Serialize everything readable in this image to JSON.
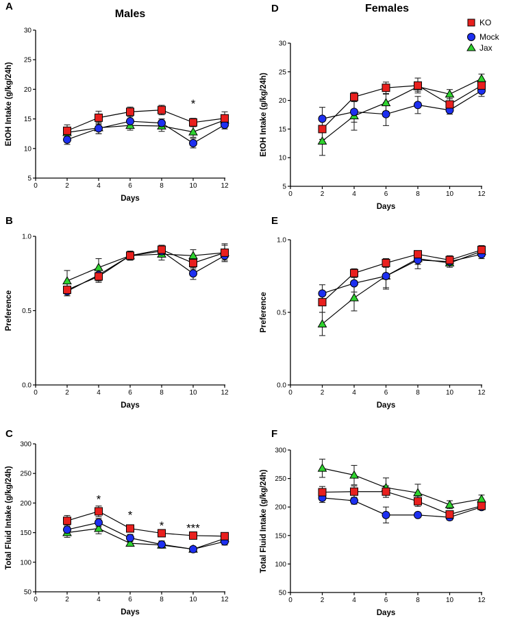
{
  "figure": {
    "column_titles": [
      "Males",
      "Females"
    ]
  },
  "legend": [
    {
      "name": "KO",
      "marker": "square",
      "color": "#e8201e"
    },
    {
      "name": "Mock",
      "marker": "circle",
      "color": "#1d2ff0"
    },
    {
      "name": "Jax",
      "marker": "triangle",
      "color": "#2fd22f"
    }
  ],
  "chart_data": [
    {
      "panel": "A",
      "type": "line",
      "column": "Males",
      "xlabel": "Days",
      "ylabel": "EtOH Intake (g/kg/24h)",
      "xlim": [
        0,
        12
      ],
      "xticks": [
        0,
        2,
        4,
        6,
        8,
        10,
        12
      ],
      "ylim": [
        5,
        30
      ],
      "yticks": [
        5,
        10,
        15,
        20,
        25,
        30
      ],
      "x": [
        2,
        4,
        6,
        8,
        10,
        12
      ],
      "series": [
        {
          "name": "KO",
          "values": [
            13.0,
            15.2,
            16.2,
            16.5,
            14.4,
            15.1
          ],
          "errors": [
            1.0,
            1.1,
            0.8,
            0.8,
            0.7,
            1.1
          ]
        },
        {
          "name": "Mock",
          "values": [
            11.5,
            13.4,
            14.6,
            14.3,
            10.9,
            14.0
          ],
          "errors": [
            0.8,
            0.9,
            0.8,
            0.7,
            0.8,
            0.7
          ]
        },
        {
          "name": "Jax",
          "values": [
            12.7,
            13.5,
            13.9,
            13.8,
            12.8,
            14.8
          ],
          "errors": [
            0.9,
            1.0,
            0.8,
            0.9,
            0.9,
            0.9
          ]
        }
      ],
      "annotations": [
        {
          "x": 10,
          "y": 17.6,
          "text": "*"
        }
      ]
    },
    {
      "panel": "B",
      "type": "line",
      "column": "Males",
      "xlabel": "Days",
      "ylabel": "Preference",
      "xlim": [
        0,
        12
      ],
      "xticks": [
        0,
        2,
        4,
        6,
        8,
        10,
        12
      ],
      "ylim": [
        0.0,
        1.0
      ],
      "yticks": [
        0.0,
        0.5,
        1.0
      ],
      "ytick_labels": [
        "0.0",
        "0.5",
        "1.0"
      ],
      "x": [
        2,
        4,
        6,
        8,
        10,
        12
      ],
      "series": [
        {
          "name": "KO",
          "values": [
            0.64,
            0.73,
            0.87,
            0.91,
            0.82,
            0.89
          ],
          "errors": [
            0.04,
            0.04,
            0.03,
            0.03,
            0.04,
            0.05
          ]
        },
        {
          "name": "Mock",
          "values": [
            0.63,
            0.74,
            0.87,
            0.9,
            0.75,
            0.87
          ],
          "errors": [
            0.03,
            0.04,
            0.03,
            0.03,
            0.04,
            0.04
          ]
        },
        {
          "name": "Jax",
          "values": [
            0.7,
            0.79,
            0.87,
            0.88,
            0.87,
            0.89
          ],
          "errors": [
            0.07,
            0.06,
            0.03,
            0.04,
            0.04,
            0.06
          ]
        }
      ],
      "annotations": []
    },
    {
      "panel": "C",
      "type": "line",
      "column": "Males",
      "xlabel": "Days",
      "ylabel": "Total Fluid Intake (g/kg/24h)",
      "xlim": [
        0,
        12
      ],
      "xticks": [
        0,
        2,
        4,
        6,
        8,
        10,
        12
      ],
      "ylim": [
        50,
        300
      ],
      "yticks": [
        50,
        100,
        150,
        200,
        250,
        300
      ],
      "x": [
        2,
        4,
        6,
        8,
        10,
        12
      ],
      "series": [
        {
          "name": "KO",
          "values": [
            170,
            186,
            157,
            149,
            145,
            144
          ],
          "errors": [
            9,
            9,
            6,
            5,
            4,
            5
          ]
        },
        {
          "name": "Mock",
          "values": [
            155,
            167,
            141,
            130,
            122,
            135
          ],
          "errors": [
            8,
            7,
            6,
            6,
            4,
            6
          ]
        },
        {
          "name": "Jax",
          "values": [
            150,
            157,
            132,
            129,
            122,
            140
          ],
          "errors": [
            8,
            9,
            5,
            5,
            4,
            6
          ]
        }
      ],
      "annotations": [
        {
          "x": 4,
          "y": 207,
          "text": "*"
        },
        {
          "x": 6,
          "y": 180,
          "text": "*"
        },
        {
          "x": 8,
          "y": 162,
          "text": "*"
        },
        {
          "x": 10,
          "y": 158,
          "text": "***"
        }
      ]
    },
    {
      "panel": "D",
      "type": "line",
      "column": "Females",
      "xlabel": "Days",
      "ylabel": "EtOH Intake (g/kg/24h)",
      "xlim": [
        0,
        12
      ],
      "xticks": [
        0,
        2,
        4,
        6,
        8,
        10,
        12
      ],
      "ylim": [
        5,
        30
      ],
      "yticks": [
        5,
        10,
        15,
        20,
        25,
        30
      ],
      "x": [
        2,
        4,
        6,
        8,
        10,
        12
      ],
      "series": [
        {
          "name": "KO",
          "values": [
            15.0,
            20.6,
            22.2,
            22.6,
            19.3,
            22.6
          ],
          "errors": [
            1.8,
            0.8,
            1.0,
            1.3,
            1.0,
            1.0
          ]
        },
        {
          "name": "Mock",
          "values": [
            16.8,
            18.0,
            17.6,
            19.2,
            18.3,
            21.7
          ],
          "errors": [
            2.0,
            1.8,
            2.0,
            1.5,
            0.7,
            1.0
          ]
        },
        {
          "name": "Jax",
          "values": [
            12.9,
            17.3,
            19.6,
            22.4,
            21.1,
            23.8
          ],
          "errors": [
            2.5,
            2.5,
            1.5,
            0.8,
            0.8,
            0.8
          ]
        }
      ],
      "annotations": []
    },
    {
      "panel": "E",
      "type": "line",
      "column": "Females",
      "xlabel": "Days",
      "ylabel": "Preference",
      "xlim": [
        0,
        12
      ],
      "xticks": [
        0,
        2,
        4,
        6,
        8,
        10,
        12
      ],
      "ylim": [
        0.0,
        1.0
      ],
      "yticks": [
        0.0,
        0.5,
        1.0
      ],
      "ytick_labels": [
        "0.0",
        "0.5",
        "1.0"
      ],
      "x": [
        2,
        4,
        6,
        8,
        10,
        12
      ],
      "series": [
        {
          "name": "KO",
          "values": [
            0.57,
            0.77,
            0.84,
            0.9,
            0.86,
            0.93
          ],
          "errors": [
            0.07,
            0.03,
            0.03,
            0.02,
            0.03,
            0.03
          ]
        },
        {
          "name": "Mock",
          "values": [
            0.63,
            0.7,
            0.75,
            0.86,
            0.85,
            0.9
          ],
          "errors": [
            0.06,
            0.06,
            0.08,
            0.06,
            0.03,
            0.03
          ]
        },
        {
          "name": "Jax",
          "values": [
            0.42,
            0.6,
            0.75,
            0.87,
            0.84,
            0.92
          ],
          "errors": [
            0.08,
            0.09,
            0.09,
            0.04,
            0.03,
            0.03
          ]
        }
      ],
      "annotations": []
    },
    {
      "panel": "F",
      "type": "line",
      "column": "Females",
      "xlabel": "Days",
      "ylabel": "Total Fluid Intake (g/kg/24h)",
      "xlim": [
        0,
        12
      ],
      "xticks": [
        0,
        2,
        4,
        6,
        8,
        10,
        12
      ],
      "ylim": [
        50,
        300
      ],
      "yticks": [
        50,
        100,
        150,
        200,
        250,
        300
      ],
      "x": [
        2,
        4,
        6,
        8,
        10,
        12
      ],
      "series": [
        {
          "name": "KO",
          "values": [
            226,
            227,
            227,
            210,
            187,
            202
          ],
          "errors": [
            10,
            10,
            10,
            9,
            6,
            6
          ]
        },
        {
          "name": "Mock",
          "values": [
            216,
            211,
            186,
            186,
            182,
            200
          ],
          "errors": [
            8,
            6,
            14,
            4,
            5,
            5
          ]
        },
        {
          "name": "Jax",
          "values": [
            268,
            256,
            234,
            225,
            204,
            214
          ],
          "errors": [
            16,
            17,
            17,
            15,
            7,
            7
          ]
        }
      ],
      "annotations": []
    }
  ]
}
